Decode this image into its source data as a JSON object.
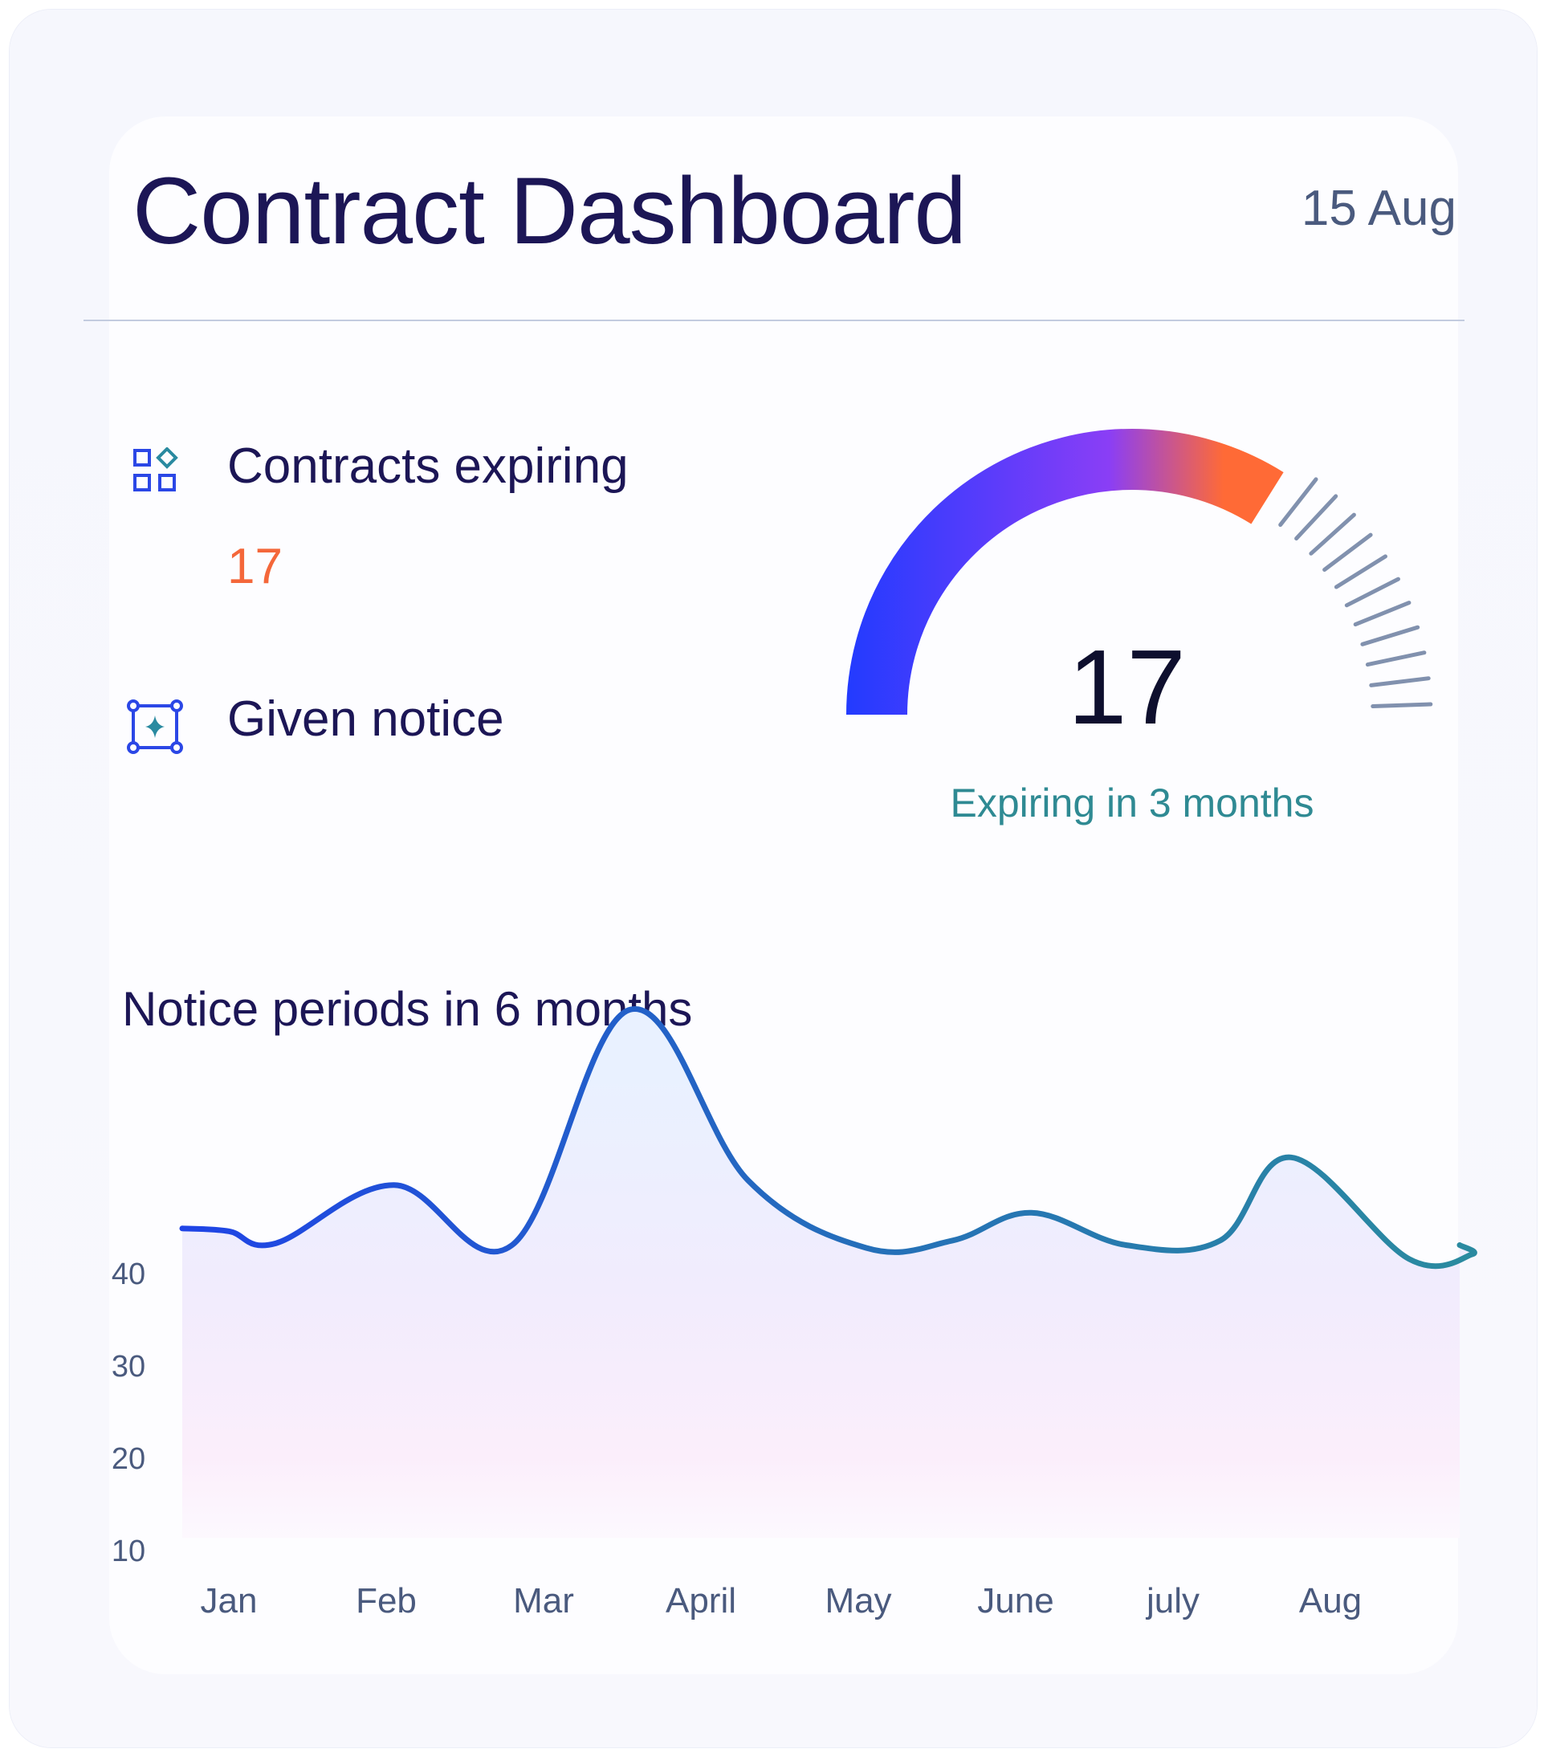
{
  "header": {
    "title": "Contract Dashboard",
    "date": "15 Aug"
  },
  "metrics": {
    "contracts_expiring": {
      "label": "Contracts expiring",
      "value": "17",
      "icon": "grid-shapes-icon"
    },
    "given_notice": {
      "label": "Given notice",
      "icon": "frame-sparkle-icon"
    }
  },
  "gauge": {
    "value": "17",
    "caption": "Expiring in 3 months",
    "colors": {
      "start": "#1e3bff",
      "mid": "#8a3ef6",
      "end": "#ff6a36",
      "ticks": "#8191ae"
    }
  },
  "chart_data": {
    "type": "area",
    "title": "Notice periods in 6 months",
    "categories": [
      "Jan",
      "Feb",
      "Mar",
      "April",
      "May",
      "June",
      "july",
      "Aug"
    ],
    "yticks": [
      40,
      30,
      20,
      10
    ],
    "ylim": [
      10,
      70
    ],
    "grid": false,
    "x": [
      0.0,
      0.3,
      1.05,
      1.8,
      2.55,
      3.3,
      4.05,
      4.6,
      5.1,
      5.7,
      6.3,
      6.75,
      7.5,
      7.9
    ],
    "values": [
      44.5,
      43.2,
      49.5,
      43.0,
      68.5,
      50.0,
      42.7,
      43.5,
      46.5,
      43.0,
      43.5,
      52.5,
      41.5,
      42.0
    ],
    "line_colors": [
      "#1f44e6",
      "#2570b8",
      "#2a8aa0"
    ]
  }
}
